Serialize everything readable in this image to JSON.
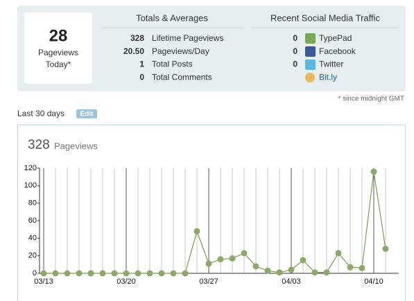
{
  "summary": {
    "today_value": "28",
    "today_label_1": "Pageviews",
    "today_label_2": "Today*",
    "totals_title": "Totals & Averages",
    "totals": [
      {
        "value": "328",
        "label": "Lifetime Pageviews"
      },
      {
        "value": "20.50",
        "label": "Pageviews/Day"
      },
      {
        "value": "1",
        "label": "Total Posts"
      },
      {
        "value": "0",
        "label": "Total Comments"
      }
    ],
    "social_title": "Recent Social Media Traffic",
    "social": [
      {
        "value": "0",
        "label": "TypePad"
      },
      {
        "value": "0",
        "label": "Facebook"
      },
      {
        "value": "0",
        "label": "Twitter"
      },
      {
        "value": null,
        "label": "Bit.ly"
      }
    ],
    "note": "* since midnight GMT"
  },
  "section": {
    "title": "Last 30 days",
    "edit": "Edit"
  },
  "chart_data": {
    "type": "line",
    "total": 328,
    "title": "Pageviews",
    "color": "#7f9a5c",
    "categories": [
      "03/13",
      null,
      null,
      null,
      null,
      null,
      null,
      "03/20",
      null,
      null,
      null,
      null,
      null,
      null,
      "03/27",
      null,
      null,
      null,
      null,
      null,
      null,
      "04/03",
      null,
      null,
      null,
      null,
      null,
      null,
      "04/10",
      null
    ],
    "values": [
      0,
      0,
      0,
      0,
      0,
      0,
      0,
      0,
      0,
      0,
      0,
      0,
      0,
      48,
      11,
      16,
      17,
      23,
      8,
      3,
      1,
      4,
      15,
      1,
      1,
      23,
      7,
      6,
      116,
      28
    ],
    "ylim": [
      0,
      120
    ],
    "yticks": [
      0,
      20,
      40,
      60,
      80,
      100,
      120
    ]
  }
}
